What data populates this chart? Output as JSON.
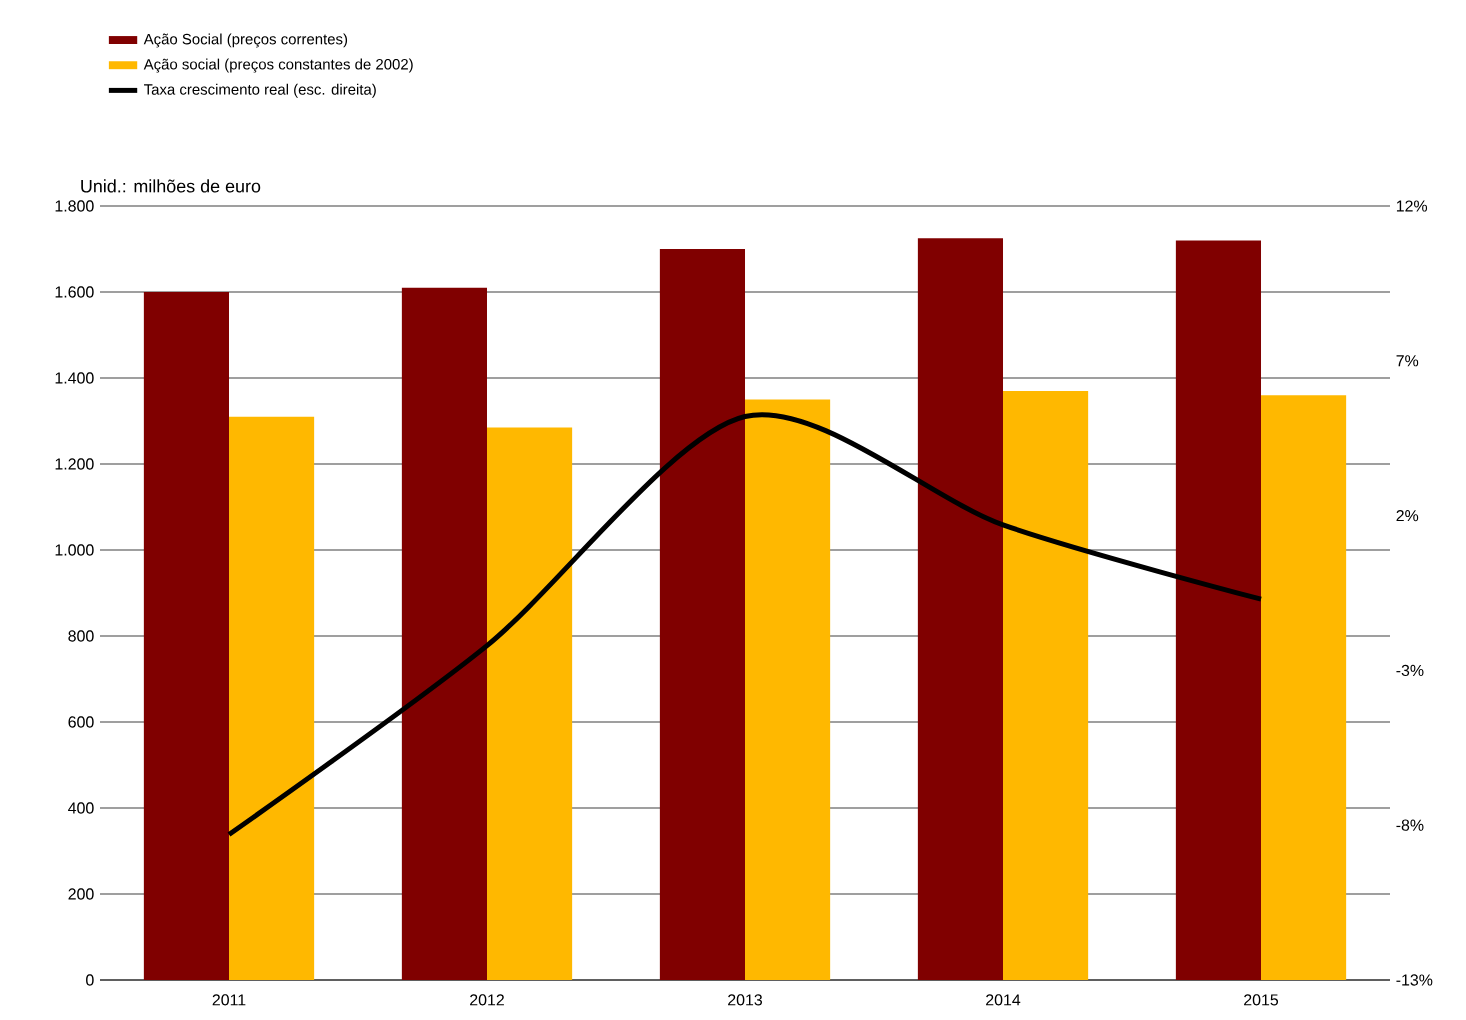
{
  "chart_data": {
    "type": "bar",
    "annotations": [
      "Unid.: milhões de euro"
    ],
    "categories": [
      "2011",
      "2012",
      "2013",
      "2014",
      "2015"
    ],
    "series": [
      {
        "name": "Ação Social (preços correntes)",
        "color": "#800000",
        "values": [
          1600,
          1610,
          1700,
          1725,
          1720
        ]
      },
      {
        "name": "Ação social (preços constantes de 2002)",
        "color": "#ffb800",
        "values": [
          1310,
          1285,
          1350,
          1370,
          1360
        ]
      },
      {
        "name": "Taxa crescimento real (esc. direita)",
        "type": "line",
        "axis": "y2",
        "color": "#000000",
        "values": [
          -8.3,
          -2.2,
          5.2,
          1.7,
          -0.7
        ]
      }
    ],
    "ylim": [
      0,
      1800
    ],
    "yticks": [
      0,
      200,
      400,
      600,
      800,
      {
        "value": 1000,
        "label": "1.000"
      },
      {
        "value": 1200,
        "label": "1.200"
      },
      {
        "value": 1400,
        "label": "1.400"
      },
      {
        "value": 1600,
        "label": "1.600"
      },
      {
        "value": 1800,
        "label": "1.800"
      }
    ],
    "y2lim": [
      -13,
      12
    ],
    "y2ticks": [
      {
        "value": -13,
        "label": "-13%"
      },
      {
        "value": -8,
        "label": "-8%"
      },
      {
        "value": -3,
        "label": "-3%"
      },
      {
        "value": 2,
        "label": "2%"
      },
      {
        "value": 7,
        "label": "7%"
      },
      {
        "value": 12,
        "label": "12%"
      }
    ],
    "grid": "y",
    "legend": "top left"
  }
}
